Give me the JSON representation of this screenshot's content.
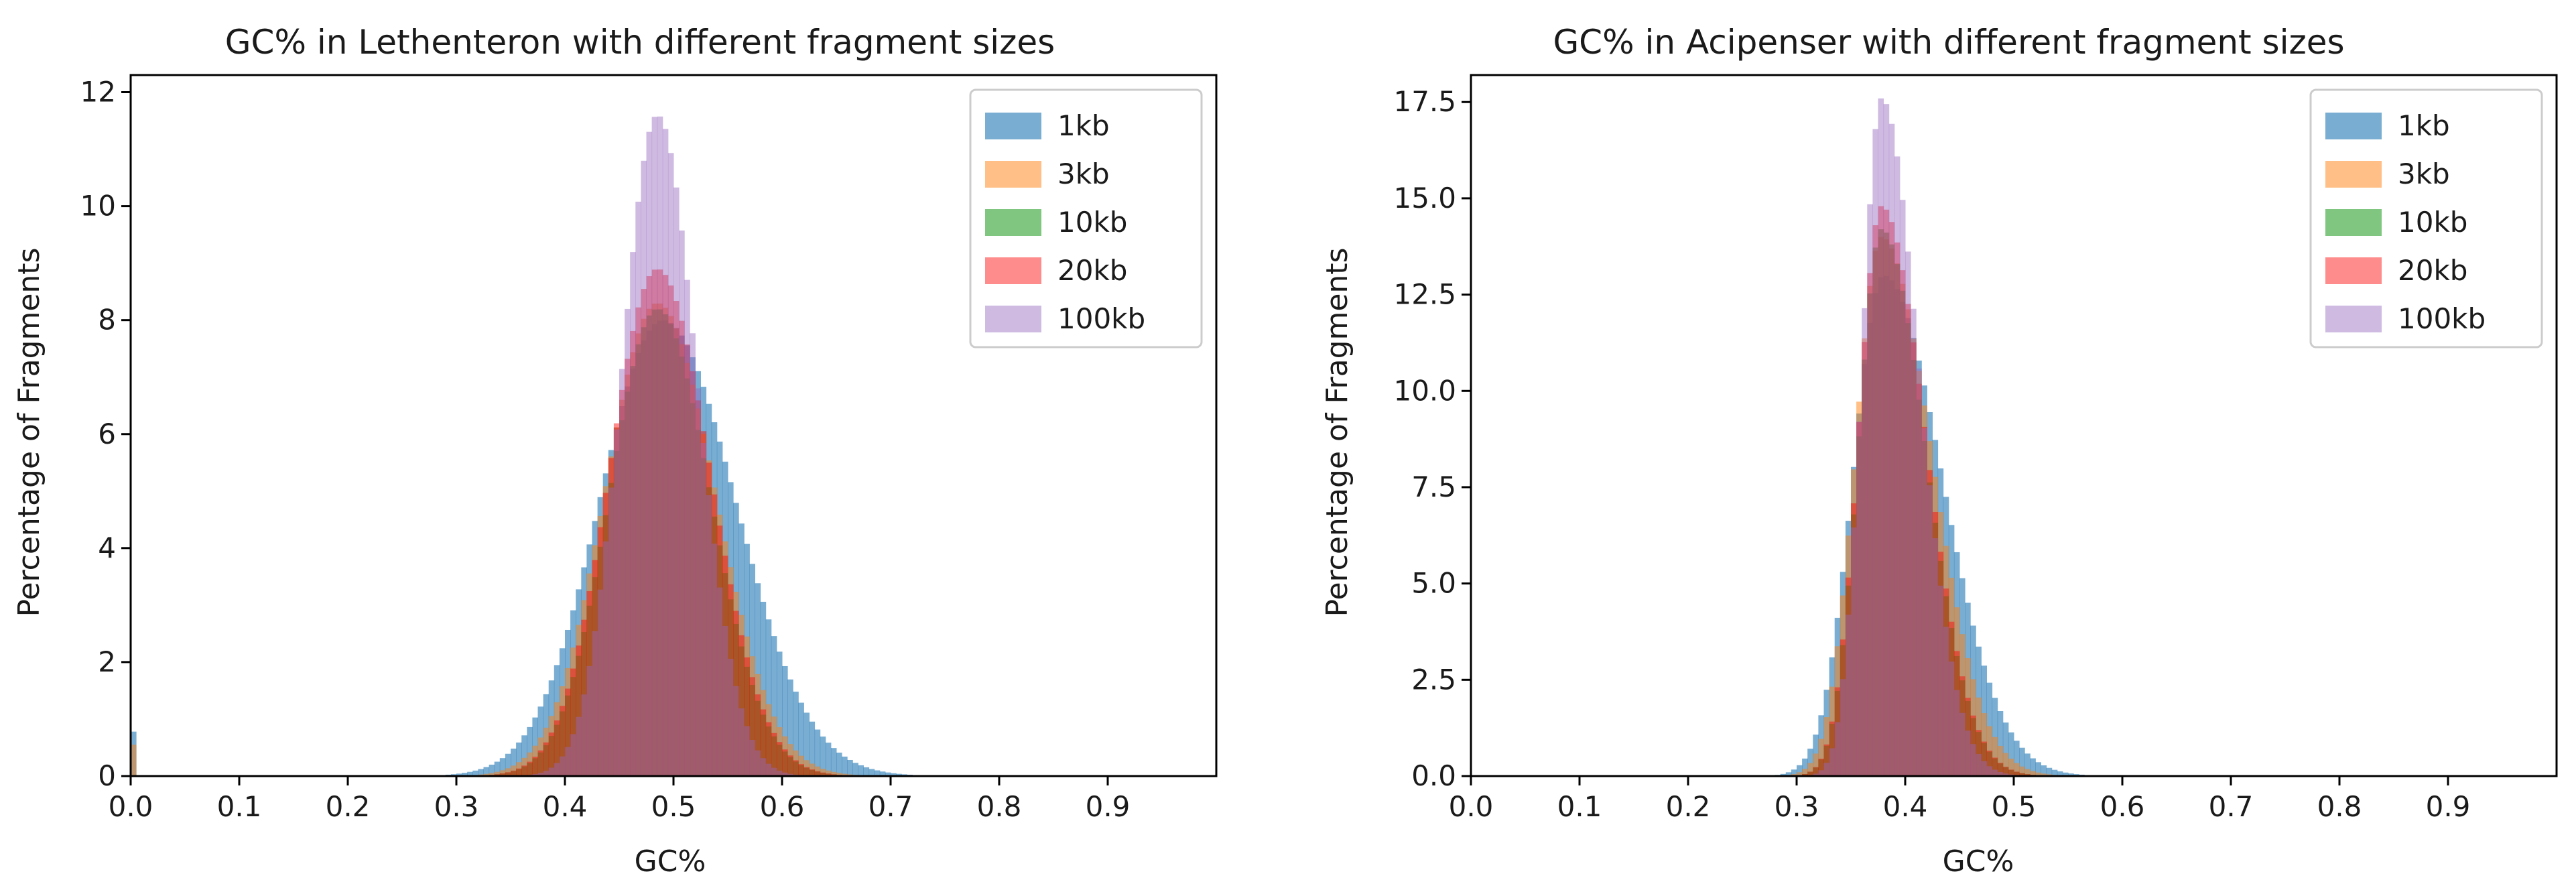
{
  "chart_data": [
    {
      "type": "histogram",
      "title": "GC% in Lethenteron with different fragment sizes",
      "xlabel": "GC%",
      "ylabel": "Percentage of Fragments",
      "xlim": [
        0.0,
        1.0
      ],
      "ylim": [
        0,
        12.3
      ],
      "xticks": [
        0.0,
        0.1,
        0.2,
        0.3,
        0.4,
        0.5,
        0.6,
        0.7,
        0.8,
        0.9
      ],
      "xtick_labels": [
        "0.0",
        "0.1",
        "0.2",
        "0.3",
        "0.4",
        "0.5",
        "0.6",
        "0.7",
        "0.8",
        "0.9"
      ],
      "yticks": [
        0,
        2,
        4,
        6,
        8,
        10,
        12
      ],
      "ytick_labels": [
        "0",
        "2",
        "4",
        "6",
        "8",
        "10",
        "12"
      ],
      "grid": false,
      "legend_position": "top-right",
      "series": [
        {
          "name": "1kb",
          "color": "#1f77b4",
          "opacity": 0.6,
          "mean": 0.49,
          "sd": 0.058,
          "peak": 8.0,
          "edge_value": 0.78,
          "skew": 0.15
        },
        {
          "name": "3kb",
          "color": "#ff7f0e",
          "opacity": 0.5,
          "mean": 0.485,
          "sd": 0.048,
          "peak": 8.3,
          "edge_value": 0.55,
          "skew": 0.1
        },
        {
          "name": "10kb",
          "color": "#2ca02c",
          "opacity": 0.6,
          "mean": 0.485,
          "sd": 0.044,
          "peak": 8.2,
          "edge_value": 0.0,
          "skew": 0.1
        },
        {
          "name": "20kb",
          "color": "#ff0000",
          "opacity": 0.45,
          "mean": 0.485,
          "sd": 0.044,
          "peak": 8.9,
          "edge_value": 0.0,
          "skew": 0.1
        },
        {
          "name": "100kb",
          "color": "#9467bd",
          "opacity": 0.45,
          "mean": 0.485,
          "sd": 0.033,
          "peak": 11.6,
          "edge_value": 0.0,
          "skew": 0.1
        }
      ]
    },
    {
      "type": "histogram",
      "title": "GC% in Acipenser with different fragment sizes",
      "xlabel": "GC%",
      "ylabel": "Percentage of Fragments",
      "xlim": [
        0.0,
        1.0
      ],
      "ylim": [
        0,
        18.2
      ],
      "xticks": [
        0.0,
        0.1,
        0.2,
        0.3,
        0.4,
        0.5,
        0.6,
        0.7,
        0.8,
        0.9
      ],
      "xtick_labels": [
        "0.0",
        "0.1",
        "0.2",
        "0.3",
        "0.4",
        "0.5",
        "0.6",
        "0.7",
        "0.8",
        "0.9"
      ],
      "yticks": [
        0,
        2.5,
        5,
        7.5,
        10,
        12.5,
        15,
        17.5
      ],
      "ytick_labels": [
        "0.0",
        "2.5",
        "5.0",
        "7.5",
        "10.0",
        "12.5",
        "15.0",
        "17.5"
      ],
      "grid": false,
      "legend_position": "top-right",
      "series": [
        {
          "name": "1kb",
          "color": "#1f77b4",
          "opacity": 0.6,
          "mean": 0.38,
          "sd": 0.028,
          "peak": 13.0,
          "edge_value": 0.0,
          "skew": 0.9
        },
        {
          "name": "3kb",
          "color": "#ff7f0e",
          "opacity": 0.5,
          "mean": 0.378,
          "sd": 0.024,
          "peak": 14.0,
          "edge_value": 0.0,
          "skew": 0.9
        },
        {
          "name": "10kb",
          "color": "#2ca02c",
          "opacity": 0.6,
          "mean": 0.378,
          "sd": 0.021,
          "peak": 14.2,
          "edge_value": 0.0,
          "skew": 0.9
        },
        {
          "name": "20kb",
          "color": "#ff0000",
          "opacity": 0.45,
          "mean": 0.378,
          "sd": 0.021,
          "peak": 14.8,
          "edge_value": 0.0,
          "skew": 0.9
        },
        {
          "name": "100kb",
          "color": "#9467bd",
          "opacity": 0.45,
          "mean": 0.378,
          "sd": 0.018,
          "peak": 17.6,
          "edge_value": 0.0,
          "skew": 0.9
        }
      ]
    }
  ]
}
